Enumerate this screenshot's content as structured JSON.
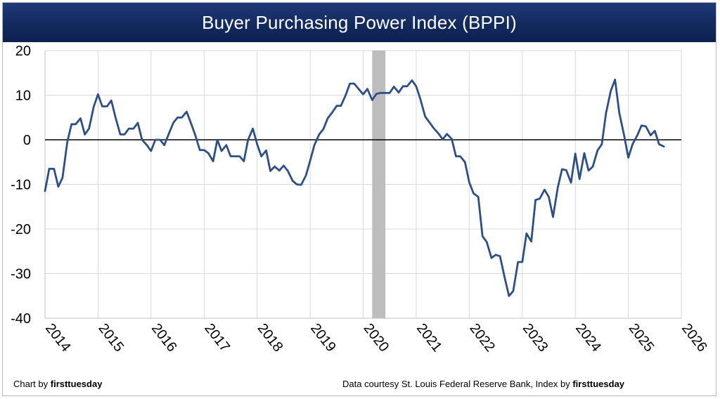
{
  "chart_data": {
    "type": "line",
    "title": "Buyer Purchasing Power Index (BPPI)",
    "xlabel": "",
    "ylabel": "",
    "ylim": [
      -40,
      20
    ],
    "xlim": [
      2014,
      2026
    ],
    "y_ticks": [
      -40,
      -30,
      -20,
      -10,
      0,
      10,
      20
    ],
    "x_ticks": [
      2014,
      2015,
      2016,
      2017,
      2018,
      2019,
      2020,
      2021,
      2022,
      2023,
      2024,
      2025,
      2026
    ],
    "grid": true,
    "legend": "none",
    "reference_line": 0,
    "shaded_period": {
      "x0": 2020.17,
      "x1": 2020.42
    },
    "series": [
      {
        "color": "#2e4f86",
        "x": [
          2014.0,
          2014.08,
          2014.17,
          2014.25,
          2014.33,
          2014.42,
          2014.5,
          2014.58,
          2014.67,
          2014.75,
          2014.83,
          2014.92,
          2015.0,
          2015.08,
          2015.17,
          2015.25,
          2015.33,
          2015.42,
          2015.5,
          2015.58,
          2015.67,
          2015.75,
          2015.83,
          2015.92,
          2016.0,
          2016.08,
          2016.17,
          2016.25,
          2016.33,
          2016.42,
          2016.5,
          2016.58,
          2016.67,
          2016.75,
          2016.83,
          2016.92,
          2017.0,
          2017.08,
          2017.17,
          2017.25,
          2017.33,
          2017.42,
          2017.5,
          2017.58,
          2017.67,
          2017.75,
          2017.83,
          2017.92,
          2018.0,
          2018.08,
          2018.17,
          2018.25,
          2018.33,
          2018.42,
          2018.5,
          2018.58,
          2018.67,
          2018.75,
          2018.83,
          2018.92,
          2019.0,
          2019.08,
          2019.17,
          2019.25,
          2019.33,
          2019.42,
          2019.5,
          2019.58,
          2019.67,
          2019.75,
          2019.83,
          2019.92,
          2020.0,
          2020.08,
          2020.17,
          2020.25,
          2020.33,
          2020.42,
          2020.5,
          2020.58,
          2020.67,
          2020.75,
          2020.83,
          2020.92,
          2021.0,
          2021.08,
          2021.17,
          2021.25,
          2021.33,
          2021.42,
          2021.5,
          2021.58,
          2021.67,
          2021.75,
          2021.83,
          2021.92,
          2022.0,
          2022.08,
          2022.17,
          2022.25,
          2022.33,
          2022.42,
          2022.5,
          2022.58,
          2022.67,
          2022.75,
          2022.83,
          2022.92,
          2023.0,
          2023.08,
          2023.17,
          2023.25,
          2023.33,
          2023.42,
          2023.5,
          2023.58,
          2023.67,
          2023.75,
          2023.83,
          2023.92,
          2024.0,
          2024.08,
          2024.17,
          2024.25,
          2024.33,
          2024.42,
          2024.5,
          2024.58,
          2024.67,
          2024.75,
          2024.83,
          2024.92,
          2025.0,
          2025.08,
          2025.17,
          2025.25,
          2025.33,
          2025.42,
          2025.5,
          2025.58,
          2025.67
        ],
        "values": [
          -11.5,
          -6.5,
          -6.5,
          -10.5,
          -8.5,
          -0.5,
          3.5,
          3.5,
          4.8,
          1.2,
          2.5,
          7.5,
          10.2,
          7.5,
          7.5,
          8.8,
          5.0,
          1.2,
          1.2,
          2.5,
          2.5,
          3.8,
          0.0,
          -1.2,
          -2.5,
          0.0,
          0.0,
          -1.2,
          1.2,
          3.8,
          5.0,
          5.0,
          6.3,
          3.8,
          1.2,
          -2.3,
          -2.3,
          -3.0,
          -4.8,
          0.0,
          -2.5,
          -1.2,
          -3.7,
          -3.7,
          -3.7,
          -4.8,
          0.0,
          2.5,
          -1.0,
          -3.7,
          -2.4,
          -7.0,
          -6.0,
          -6.9,
          -5.8,
          -7.0,
          -9.2,
          -10.0,
          -10.1,
          -8.0,
          -4.7,
          -1.2,
          1.2,
          2.4,
          4.8,
          6.2,
          7.6,
          7.6,
          10.0,
          12.6,
          12.6,
          11.3,
          10.2,
          11.4,
          8.9,
          10.3,
          10.5,
          10.5,
          10.5,
          11.9,
          10.6,
          12.0,
          12.0,
          13.3,
          12.0,
          9.1,
          5.2,
          3.9,
          2.6,
          1.4,
          0.1,
          1.3,
          0.2,
          -3.7,
          -3.7,
          -5.0,
          -9.5,
          -12.0,
          -12.8,
          -21.6,
          -22.9,
          -26.5,
          -25.8,
          -26.1,
          -31.0,
          -35.0,
          -33.9,
          -27.4,
          -27.4,
          -21.0,
          -22.8,
          -13.5,
          -13.2,
          -11.2,
          -12.8,
          -17.3,
          -10.7,
          -6.6,
          -6.8,
          -9.6,
          -3.1,
          -8.8,
          -3.0,
          -6.9,
          -6.0,
          -2.4,
          -1.0,
          6.0,
          11.0,
          13.5,
          6.0,
          1.0,
          -4.0,
          -1.0,
          1.0,
          3.2,
          3.0,
          1.0,
          2.0,
          -1.0,
          -1.5
        ]
      }
    ]
  },
  "footer": {
    "left_prefix": "Chart by ",
    "left_brand": "firsttuesday",
    "right_prefix": "Data courtesy St. Louis Federal Reserve Bank, Index by ",
    "right_brand": "firsttuesday"
  },
  "colors": {
    "title_bar": "#132a5e",
    "line": "#2e4f86",
    "shade": "#bdbdbd",
    "grid": "#d9d9d9",
    "zero_line": "#000000"
  }
}
